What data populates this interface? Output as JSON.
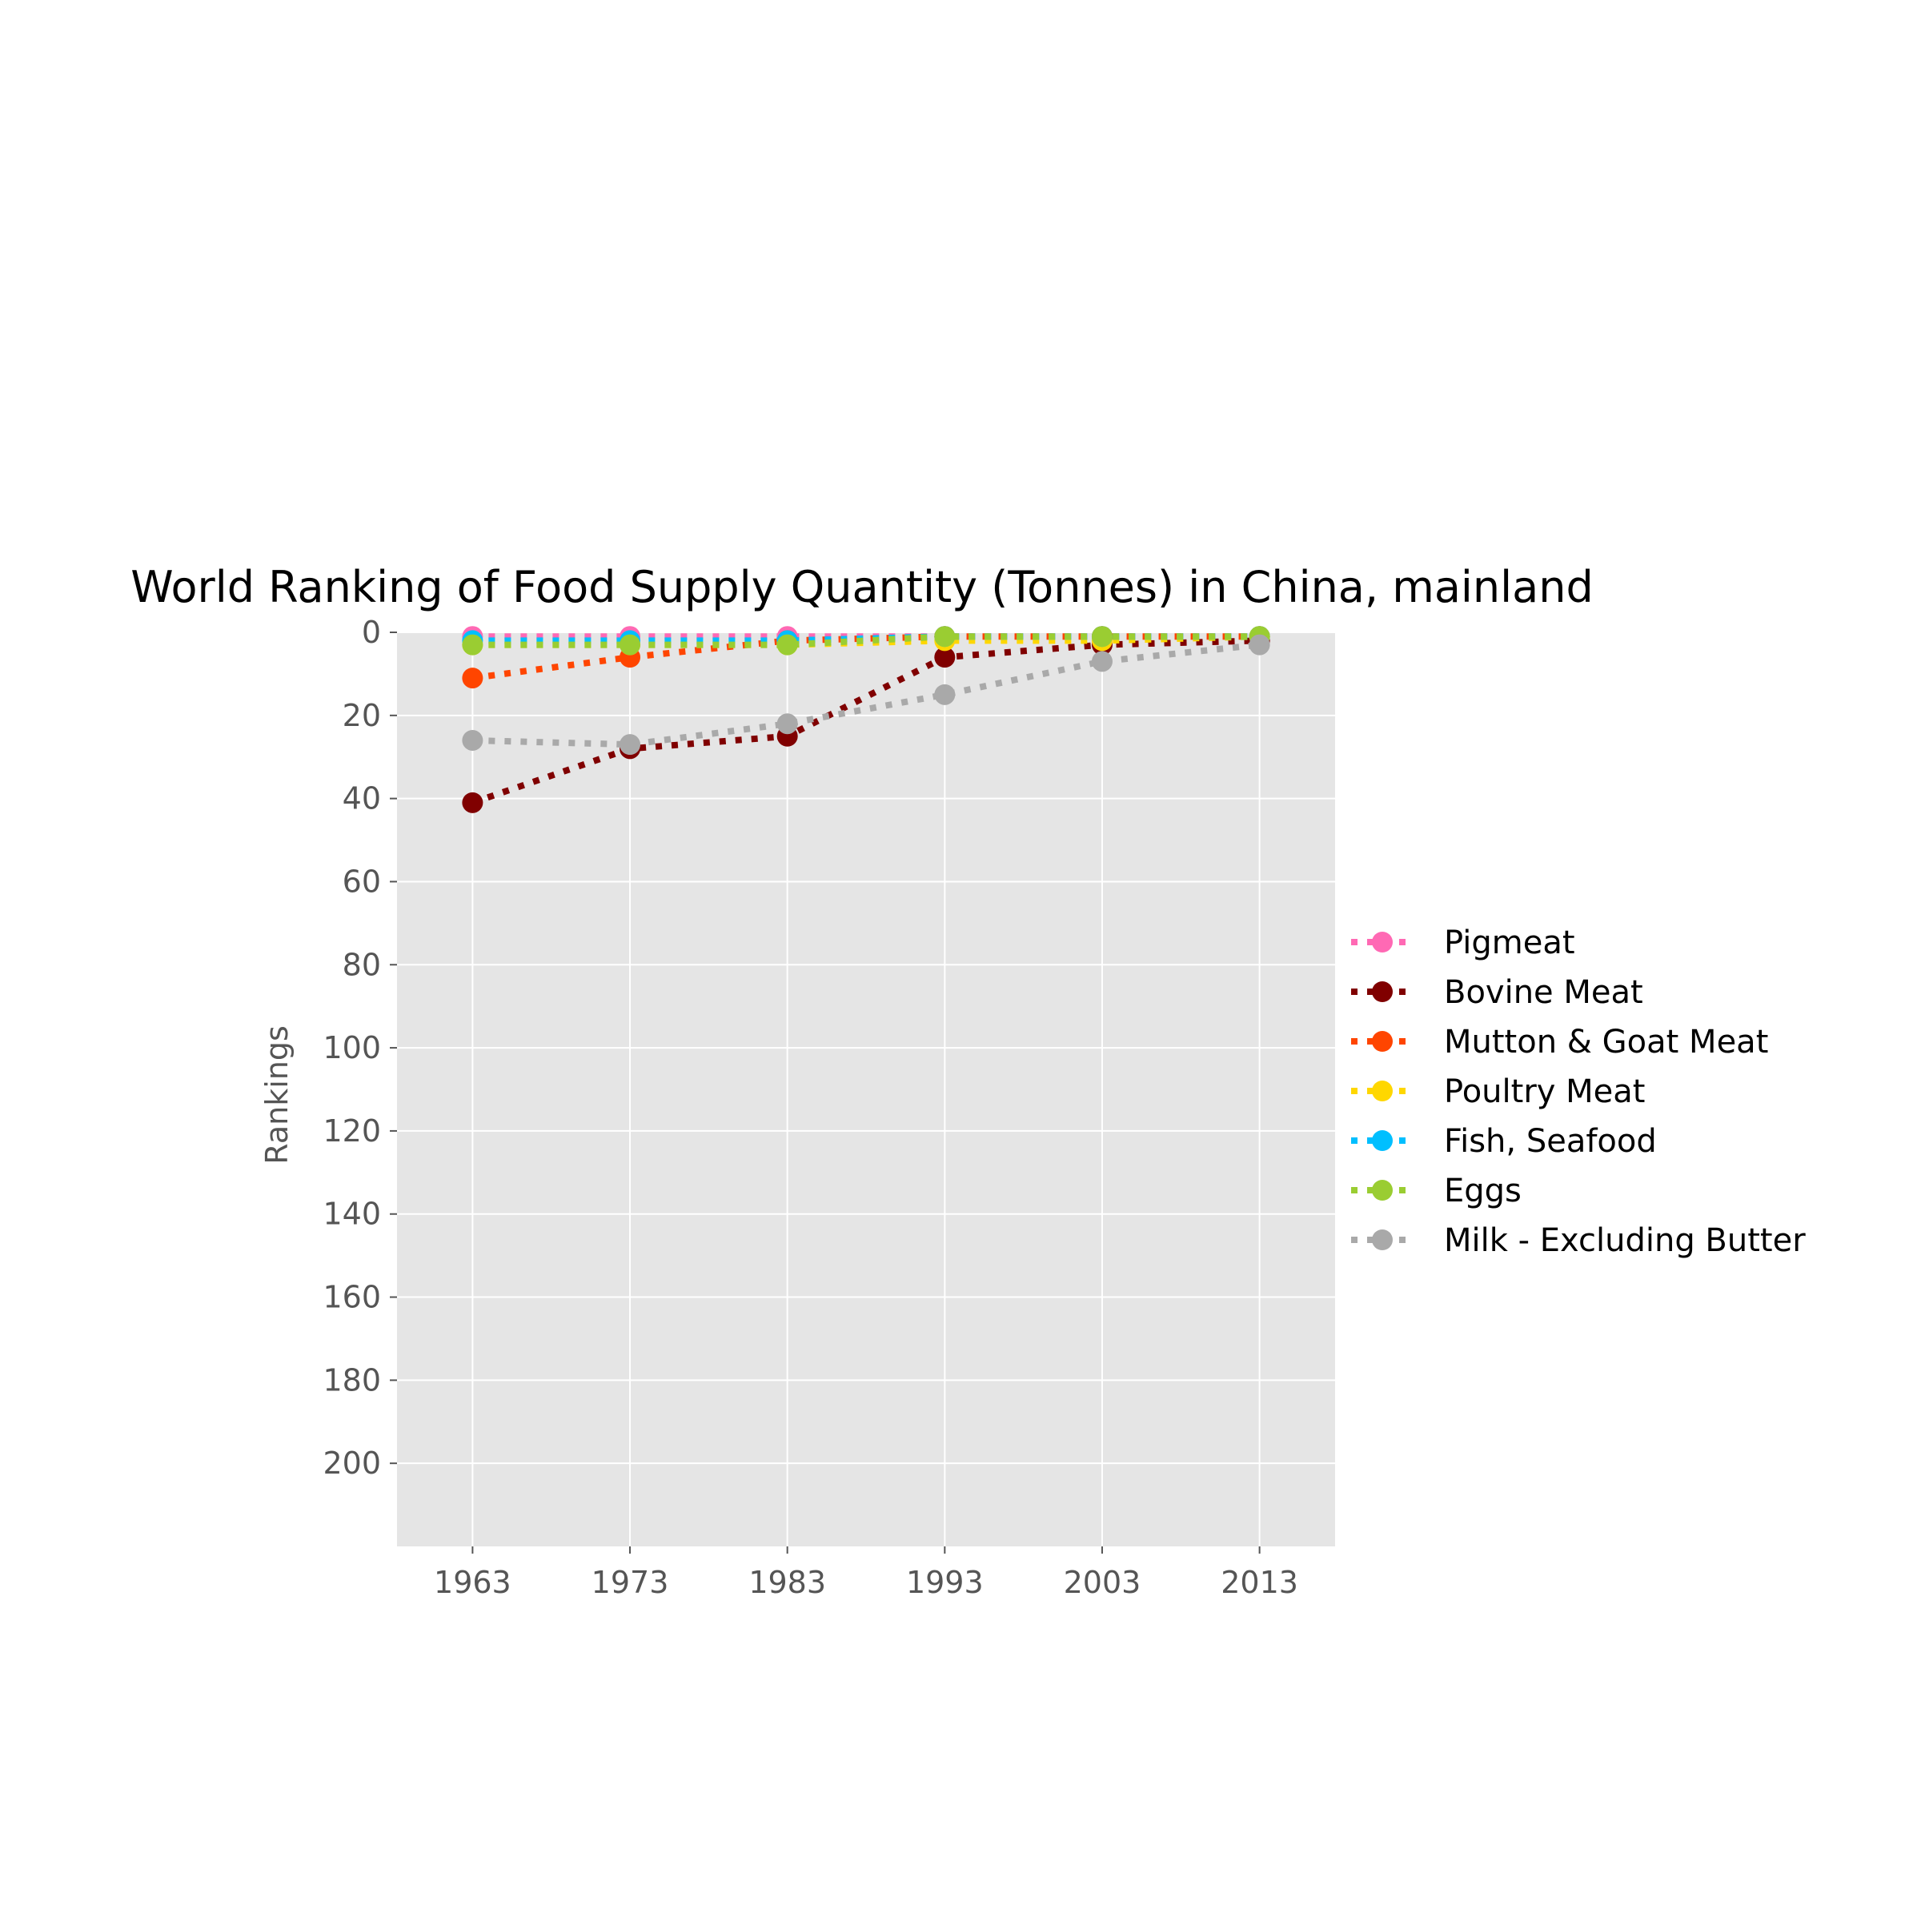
{
  "chart_data": {
    "type": "line",
    "title": "World Ranking of Food Supply Quantity (Tonnes) in China, mainland",
    "xlabel": "",
    "ylabel": "Rankings",
    "x": [
      1963,
      1973,
      1983,
      1993,
      2003,
      2013
    ],
    "x_tick_labels": [
      "1963",
      "1973",
      "1983",
      "1993",
      "2003",
      "2013"
    ],
    "xlim": [
      1958.2,
      2017.8
    ],
    "ylim": [
      220,
      0
    ],
    "y_inverted": true,
    "y_ticks": [
      0,
      20,
      40,
      60,
      80,
      100,
      120,
      140,
      160,
      180,
      200
    ],
    "grid": true,
    "background": "#e5e5e5",
    "line_style": "dotted",
    "legend_placement": "center-right, outside plot",
    "series": [
      {
        "name": "Pigmeat",
        "color": "#ff69b4",
        "values": [
          1,
          1,
          1,
          1,
          1,
          1
        ]
      },
      {
        "name": "Bovine Meat",
        "color": "#800000",
        "values": [
          41,
          28,
          25,
          6,
          3,
          2
        ]
      },
      {
        "name": "Mutton & Goat Meat",
        "color": "#ff4500",
        "values": [
          11,
          6,
          2,
          1,
          1,
          1
        ]
      },
      {
        "name": "Poultry Meat",
        "color": "#ffd700",
        "values": [
          3,
          3,
          3,
          2,
          2,
          1
        ]
      },
      {
        "name": "Fish, Seafood",
        "color": "#00bfff",
        "values": [
          2,
          2,
          2,
          1,
          1,
          1
        ]
      },
      {
        "name": "Eggs",
        "color": "#9acd32",
        "values": [
          3,
          3,
          3,
          1,
          1,
          1
        ]
      },
      {
        "name": "Milk - Excluding Butter",
        "color": "#a9a9a9",
        "values": [
          26,
          27,
          22,
          15,
          7,
          3
        ]
      }
    ]
  }
}
